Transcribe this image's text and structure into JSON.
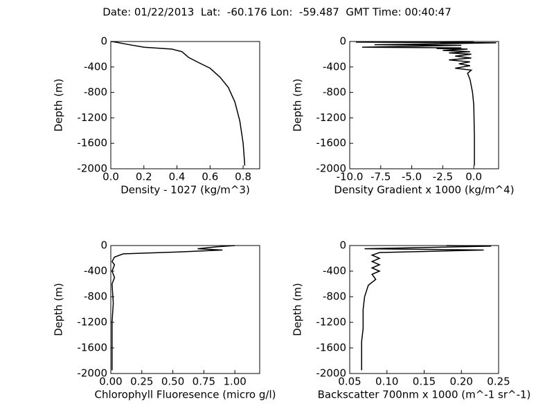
{
  "title": "Date: 01/22/2013  Lat:  -60.176 Lon:  -59.487  GMT Time: 00:40:47",
  "chart_data": [
    {
      "type": "line",
      "xlabel": "Density - 1027 (kg/m^3)",
      "ylabel": "Depth (m)",
      "xlim": [
        0,
        0.9
      ],
      "xticks": [
        {
          "value": 0,
          "label": "0.0"
        },
        0.2,
        0.4,
        0.6,
        0.8
      ],
      "ylim": [
        -2000,
        0
      ],
      "yticks": [
        0,
        -400,
        -800,
        -1200,
        -1600,
        -2000
      ],
      "series": [
        {
          "color": "#000000",
          "x": [
            0.0,
            0.02,
            0.09,
            0.2,
            0.37,
            0.43,
            0.47,
            0.53,
            0.6,
            0.66,
            0.71,
            0.75,
            0.78,
            0.8,
            0.81
          ],
          "values": [
            0,
            -5,
            -40,
            -90,
            -120,
            -160,
            -250,
            -330,
            -420,
            -560,
            -720,
            -950,
            -1250,
            -1600,
            -1950
          ]
        }
      ]
    },
    {
      "type": "line",
      "xlabel": "Density Gradient x 1000 (kg/m^4)",
      "ylabel": "Depth (m)",
      "xlim": [
        -10,
        2
      ],
      "xticks": [
        {
          "value": -10,
          "label": "-10.0"
        },
        -7.5,
        {
          "value": -5,
          "label": "-5.0"
        },
        -2.5,
        {
          "value": 0,
          "label": "0.0"
        }
      ],
      "ylim": [
        -2000,
        0
      ],
      "yticks": [
        0,
        -400,
        -800,
        -1200,
        -1600,
        -2000
      ],
      "series": [
        {
          "color": "#000000",
          "x": [
            0,
            -9.5,
            1.8,
            -4,
            -8,
            -1,
            -9,
            -1,
            -3,
            -0.5,
            -2.5,
            -0.3,
            -2,
            -0.2,
            -1.5,
            -0.2,
            -2,
            -0.3,
            -1.2,
            -0.3,
            -1.5,
            -0.2,
            -0.5,
            -0.3,
            -0.1,
            0,
            0.05,
            0.05
          ],
          "values": [
            0,
            -10,
            -20,
            -40,
            -50,
            -60,
            -90,
            -100,
            -110,
            -120,
            -140,
            -160,
            -180,
            -200,
            -230,
            -260,
            -290,
            -320,
            -350,
            -380,
            -420,
            -450,
            -500,
            -600,
            -800,
            -1000,
            -1500,
            -1950
          ]
        }
      ]
    },
    {
      "type": "line",
      "xlabel": "Chlorophyll Fluoresence (micro g/l)",
      "ylabel": "Depth (m)",
      "xlim": [
        0,
        1.2
      ],
      "xticks": [
        {
          "value": 0,
          "label": "0.00"
        },
        0.25,
        {
          "value": 0.5,
          "label": "0.50"
        },
        0.75,
        {
          "value": 1,
          "label": "1.00"
        }
      ],
      "ylim": [
        -2000,
        0
      ],
      "yticks": [
        0,
        -400,
        -800,
        -1200,
        -1600,
        -2000
      ],
      "series": [
        {
          "color": "#000000",
          "x": [
            1.0,
            0.85,
            0.7,
            0.9,
            0.55,
            0.1,
            0.03,
            0.01,
            0.03,
            0.01,
            0.03,
            0.01,
            0.02,
            0.01,
            0.01
          ],
          "values": [
            0,
            -20,
            -50,
            -70,
            -100,
            -130,
            -180,
            -250,
            -300,
            -400,
            -500,
            -600,
            -900,
            -1200,
            -1950
          ]
        }
      ]
    },
    {
      "type": "line",
      "xlabel": "Backscatter 700nm x 1000 (m^-1 sr^-1)",
      "ylabel": "Depth (m)",
      "xlim": [
        0.05,
        0.25
      ],
      "xticks": [
        0.05,
        {
          "value": 0.1,
          "label": "0.10"
        },
        0.15,
        {
          "value": 0.2,
          "label": "0.20"
        },
        0.25
      ],
      "ylim": [
        -2000,
        0
      ],
      "yticks": [
        0,
        -400,
        -800,
        -1200,
        -1600,
        -2000
      ],
      "series": [
        {
          "color": "#000000",
          "x": [
            0.18,
            0.24,
            0.07,
            0.23,
            0.09,
            0.08,
            0.09,
            0.08,
            0.09,
            0.08,
            0.09,
            0.08,
            0.085,
            0.075,
            0.07,
            0.068,
            0.068,
            0.066,
            0.066
          ],
          "values": [
            0,
            -10,
            -50,
            -70,
            -110,
            -150,
            -200,
            -250,
            -300,
            -350,
            -400,
            -450,
            -530,
            -620,
            -800,
            -1000,
            -1300,
            -1500,
            -1950
          ]
        }
      ]
    }
  ]
}
